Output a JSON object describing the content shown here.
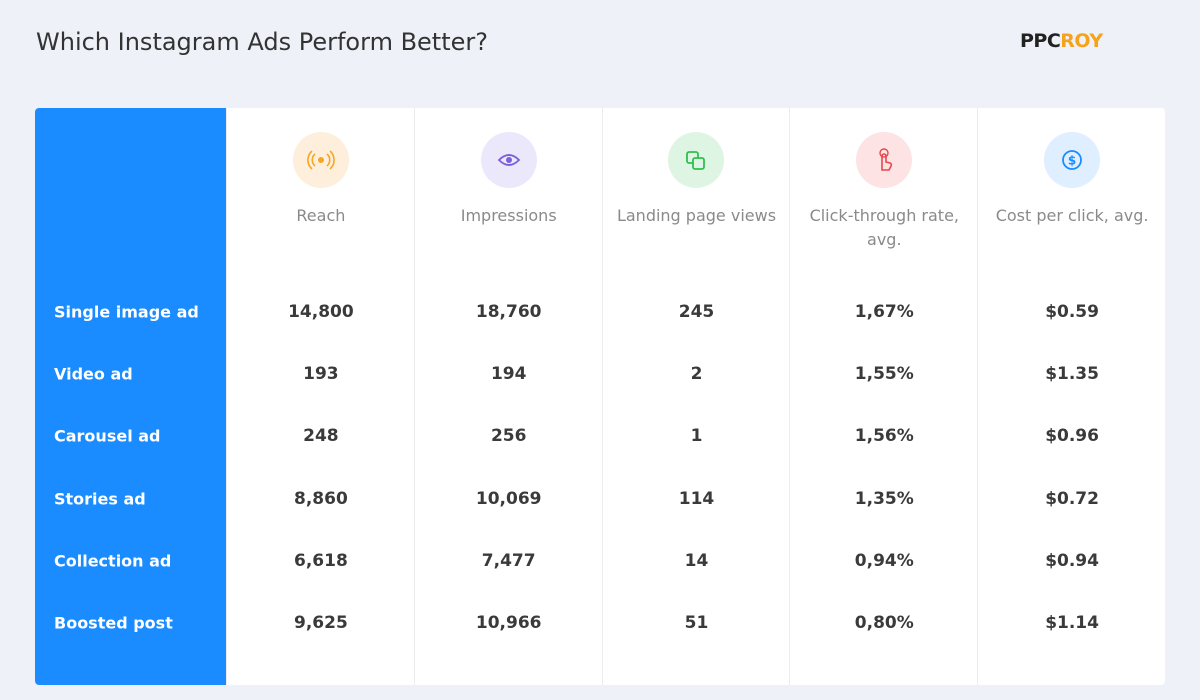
{
  "header": {
    "title": "Which Instagram Ads Perform Better?",
    "logo": [
      "PPC",
      "ROY"
    ]
  },
  "table": {
    "columns": [
      "Reach",
      "Impressions",
      "Landing page views",
      "Click-through rate, avg.",
      "Cost per click, avg."
    ],
    "rows": [
      {
        "label": "Single image ad",
        "cells": [
          "14,800",
          "18,760",
          "245",
          "1,67%",
          "$0.59"
        ]
      },
      {
        "label": "Video ad",
        "cells": [
          "193",
          "194",
          "2",
          "1,55%",
          "$1.35"
        ]
      },
      {
        "label": "Carousel ad",
        "cells": [
          "248",
          "256",
          "1",
          "1,56%",
          "$0.96"
        ]
      },
      {
        "label": "Stories ad",
        "cells": [
          "8,860",
          "10,069",
          "114",
          "1,35%",
          "$0.72"
        ]
      },
      {
        "label": "Collection ad",
        "cells": [
          "6,618",
          "7,477",
          "14",
          "0,94%",
          "$0.94"
        ]
      },
      {
        "label": "Boosted post",
        "cells": [
          "9,625",
          "10,966",
          "51",
          "0,80%",
          "$1.14"
        ]
      }
    ]
  }
}
